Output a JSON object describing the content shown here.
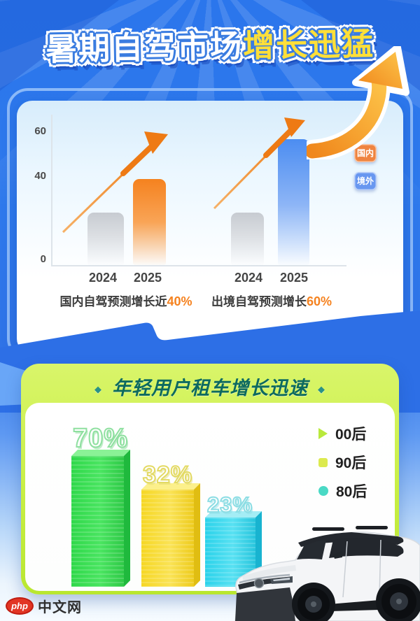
{
  "title": {
    "part1": "暑期自驾市场",
    "part2": "增长迅猛"
  },
  "chart1": {
    "y_ticks": [
      "60",
      "40",
      "0"
    ],
    "x_labels": [
      "2024",
      "2025",
      "2024",
      "2025"
    ],
    "legend": [
      {
        "label": "国内",
        "color": "#ef8440"
      },
      {
        "label": "境外",
        "color": "#6897f0"
      }
    ],
    "captions": [
      {
        "text": "国内自驾预测增长近",
        "highlight": "40%"
      },
      {
        "text": "出境自驾预测增长",
        "highlight": "60%"
      }
    ]
  },
  "chart2": {
    "title": "年轻用户租车增长迅速",
    "bullet": "◆",
    "bars": [
      {
        "label": "70%",
        "group": "00后",
        "color": "#2fd84a"
      },
      {
        "label": "32%",
        "group": "90后",
        "color": "#f6d724"
      },
      {
        "label": "23%",
        "group": "80后",
        "color": "#2bd2ea"
      }
    ],
    "legend": [
      {
        "label": "00后",
        "marker_color": "#b9e93c"
      },
      {
        "label": "90后",
        "marker_color": "#dcea4e"
      },
      {
        "label": "80后",
        "marker_color": "#4ad9c5"
      }
    ]
  },
  "watermark": {
    "badge": "php",
    "text": "中文网"
  },
  "colors": {
    "background_blue": "#2e79ec",
    "accent_orange": "#f5821f",
    "accent_yellow_title": "#ffdf38",
    "lime_banner": "#c8ef44",
    "bar_blue": "#4c8df1"
  },
  "chart_data": [
    {
      "type": "bar",
      "title": "暑期自驾市场增长迅猛",
      "categories": [
        "2024",
        "2025"
      ],
      "series": [
        {
          "name": "国内",
          "values": [
            25,
            41
          ]
        },
        {
          "name": "境外",
          "values": [
            25,
            60
          ]
        }
      ],
      "ylabel": "",
      "xlabel": "",
      "ylim": [
        0,
        65
      ],
      "yticks": [
        0,
        40,
        60
      ],
      "grid": false,
      "legend_position": "right",
      "annotations": [
        "国内自驾预测增长近40%",
        "出境自驾预测增长60%"
      ],
      "notes": "2024 bars gray (values estimated from gridlines); 2025 bars colored; orange trend arrows over each group"
    },
    {
      "type": "bar",
      "title": "年轻用户租车增长迅速",
      "categories": [
        "00后",
        "90后",
        "80后"
      ],
      "values": [
        70,
        32,
        23
      ],
      "data_labels": [
        "70%",
        "32%",
        "23%"
      ],
      "ylabel": "",
      "xlabel": "",
      "grid": false,
      "legend_position": "right",
      "notes": "3D-style bars: green, yellow, cyan"
    }
  ]
}
